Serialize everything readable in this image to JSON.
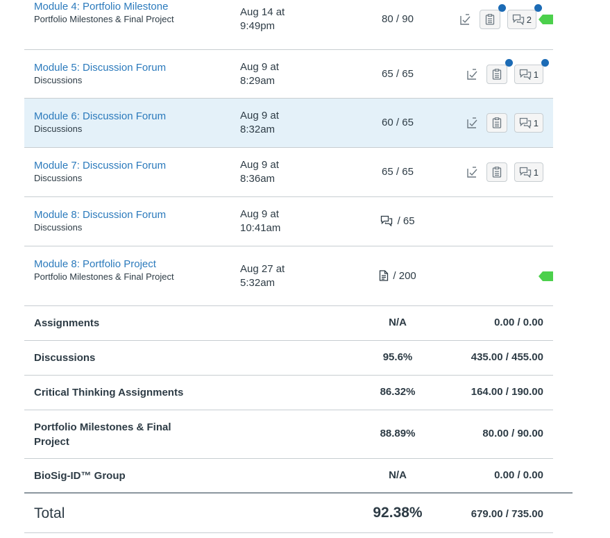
{
  "assignments": [
    {
      "title": "Module 4: Portfolio Milestone",
      "group": "Portfolio Milestones & Final Project",
      "due_line1": "Aug 14 at",
      "due_line2": "9:49pm",
      "score": "80",
      "possible": "/ 90",
      "comment_count": "2"
    },
    {
      "title": "Module 5: Discussion Forum",
      "group": "Discussions",
      "due_line1": "Aug 9 at",
      "due_line2": "8:29am",
      "score": "65",
      "possible": "/ 65",
      "comment_count": "1"
    },
    {
      "title": "Module 6: Discussion Forum",
      "group": "Discussions",
      "due_line1": "Aug 9 at",
      "due_line2": "8:32am",
      "score": "60",
      "possible": "/ 65",
      "comment_count": "1"
    },
    {
      "title": "Module 7: Discussion Forum",
      "group": "Discussions",
      "due_line1": "Aug 9 at",
      "due_line2": "8:36am",
      "score": "65",
      "possible": "/ 65",
      "comment_count": "1"
    },
    {
      "title": "Module 8: Discussion Forum",
      "group": "Discussions",
      "due_line1": "Aug 9 at",
      "due_line2": "10:41am",
      "possible": "/ 65",
      "score_icon": "discussion-icon"
    },
    {
      "title": "Module 8: Portfolio Project",
      "group": "Portfolio Milestones & Final Project",
      "due_line1": "Aug 27 at",
      "due_line2": "5:32am",
      "possible": "/ 200",
      "score_icon": "document-icon"
    }
  ],
  "summary": [
    {
      "label": "Assignments",
      "percent": "N/A",
      "points": "0.00 / 0.00"
    },
    {
      "label": "Discussions",
      "percent": "95.6%",
      "points": "435.00 / 455.00"
    },
    {
      "label": "Critical Thinking Assignments",
      "percent": "86.32%",
      "points": "164.00 / 190.00"
    },
    {
      "label": "Portfolio Milestones & Final Project",
      "percent": "88.89%",
      "points": "80.00 / 90.00"
    },
    {
      "label": "BioSig-ID™ Group",
      "percent": "N/A",
      "points": "0.00 / 0.00"
    }
  ],
  "total": {
    "label": "Total",
    "percent": "92.38%",
    "points": "679.00 / 735.00"
  },
  "colors": {
    "link": "#2b7abc",
    "unread_dot": "#1c6bb5",
    "flag": "#4cd04c",
    "row_highlight": "#e4f1f9"
  },
  "icons": {
    "what_if": "what-if-grade-icon",
    "rubric": "rubric-icon",
    "comments": "comments-icon",
    "flag": "flag-icon"
  }
}
